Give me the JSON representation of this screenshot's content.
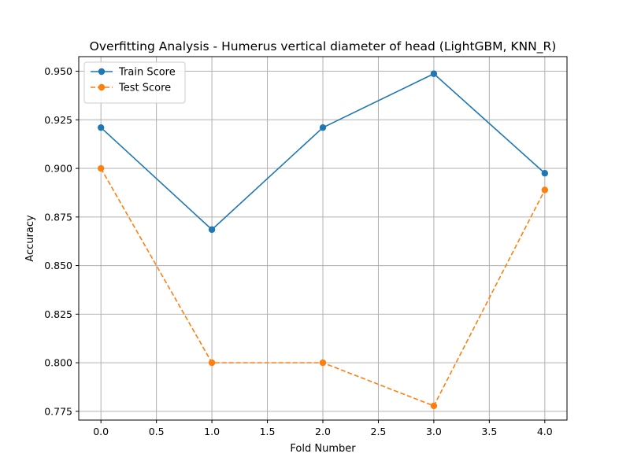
{
  "chart_data": {
    "type": "line",
    "title": "Overfitting Analysis - Humerus vertical diameter of head (LightGBM, KNN_R)",
    "xlabel": "Fold Number",
    "ylabel": "Accuracy",
    "xlim": [
      -0.2,
      4.2
    ],
    "ylim": [
      0.7705,
      0.9575
    ],
    "x": [
      0,
      1,
      2,
      3,
      4
    ],
    "x_ticks": [
      0.0,
      0.5,
      1.0,
      1.5,
      2.0,
      2.5,
      3.0,
      3.5,
      4.0
    ],
    "x_tick_labels": [
      "0.0",
      "0.5",
      "1.0",
      "1.5",
      "2.0",
      "2.5",
      "3.0",
      "3.5",
      "4.0"
    ],
    "y_ticks": [
      0.775,
      0.8,
      0.825,
      0.85,
      0.875,
      0.9,
      0.925,
      0.95
    ],
    "y_tick_labels": [
      "0.775",
      "0.800",
      "0.825",
      "0.850",
      "0.875",
      "0.900",
      "0.925",
      "0.950"
    ],
    "grid": true,
    "legend_position": "top-left",
    "series": [
      {
        "name": "Train Score",
        "values": [
          0.921,
          0.8685,
          0.921,
          0.9487,
          0.8975
        ],
        "color": "#1f77b4",
        "linestyle": "solid",
        "marker": "circle"
      },
      {
        "name": "Test Score",
        "values": [
          0.9,
          0.8,
          0.8,
          0.7778,
          0.8889
        ],
        "color": "#ff7f0e",
        "linestyle": "dashed",
        "marker": "circle"
      }
    ]
  }
}
